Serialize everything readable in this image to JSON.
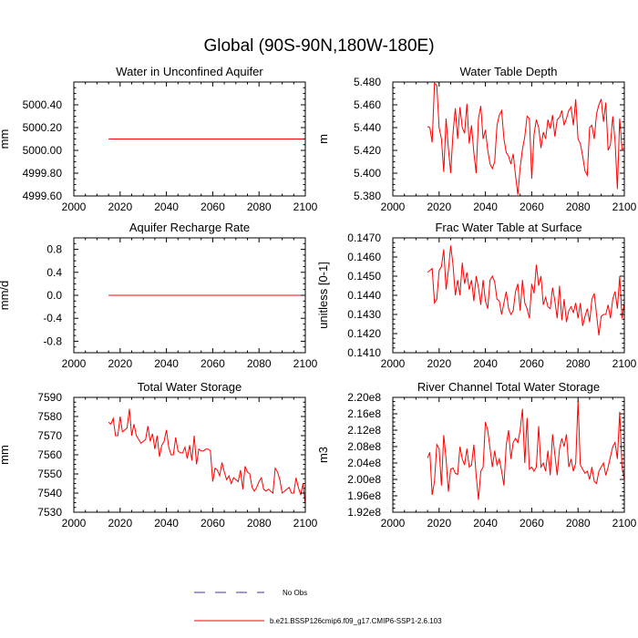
{
  "suptitle": "Global (90S-90N,180W-180E)",
  "colors": {
    "series": "#ff0000",
    "obs": "#4b2fa8"
  },
  "legend": {
    "obs_label": "No Obs",
    "model_label": "b.e21.BSSP126cmip6.f09_g17.CMIP6-SSP1-2.6.103"
  },
  "chart_data": [
    {
      "type": "line",
      "title": "Water in Unconfined Aquifer",
      "ylabel": "mm",
      "xlim": [
        2000,
        2100
      ],
      "ylim": [
        4999.6,
        5000.6
      ],
      "xticks": [
        2000,
        2020,
        2040,
        2060,
        2080,
        2100
      ],
      "xtick_labels": [
        "2000",
        "2020",
        "2040",
        "2060",
        "2080",
        "2100"
      ],
      "yticks": [
        4999.6,
        4999.8,
        5000.0,
        5000.2,
        5000.4
      ],
      "ytick_labels": [
        "4999.60",
        "4999.80",
        "5000.00",
        "5000.20",
        "5000.40"
      ],
      "x_start": 2015,
      "values": [
        5000.1,
        5000.1,
        5000.1,
        5000.1,
        5000.1,
        5000.1,
        5000.1,
        5000.1,
        5000.1,
        5000.1,
        5000.1,
        5000.1,
        5000.1,
        5000.1,
        5000.1,
        5000.1,
        5000.1,
        5000.1,
        5000.1,
        5000.1,
        5000.1,
        5000.1,
        5000.1,
        5000.1,
        5000.1,
        5000.1,
        5000.1,
        5000.1,
        5000.1,
        5000.1,
        5000.1,
        5000.1,
        5000.1,
        5000.1,
        5000.1,
        5000.1,
        5000.1,
        5000.1,
        5000.1,
        5000.1,
        5000.1,
        5000.1,
        5000.1,
        5000.1,
        5000.1,
        5000.1,
        5000.1,
        5000.1,
        5000.1,
        5000.1,
        5000.1,
        5000.1,
        5000.1,
        5000.1,
        5000.1,
        5000.1,
        5000.1,
        5000.1,
        5000.1,
        5000.1,
        5000.1,
        5000.1,
        5000.1,
        5000.1,
        5000.1,
        5000.1,
        5000.1,
        5000.1,
        5000.1,
        5000.1,
        5000.1,
        5000.1,
        5000.1,
        5000.1,
        5000.1,
        5000.1,
        5000.1,
        5000.1,
        5000.1,
        5000.1,
        5000.1,
        5000.1,
        5000.1,
        5000.1,
        5000.1,
        5000.1
      ]
    },
    {
      "type": "line",
      "title": "Water Table Depth",
      "ylabel": "m",
      "xlim": [
        2000,
        2100
      ],
      "ylim": [
        5.38,
        5.48
      ],
      "xticks": [
        2000,
        2020,
        2040,
        2060,
        2080,
        2100
      ],
      "xtick_labels": [
        "2000",
        "2020",
        "2040",
        "2060",
        "2080",
        "2100"
      ],
      "yticks": [
        5.38,
        5.4,
        5.42,
        5.44,
        5.46,
        5.48
      ],
      "ytick_labels": [
        "5.380",
        "5.400",
        "5.420",
        "5.440",
        "5.460",
        "5.480"
      ],
      "x_start": 2015,
      "values": [
        5.441,
        5.44,
        5.427,
        5.479,
        5.477,
        5.44,
        5.43,
        5.401,
        5.448,
        5.422,
        5.4,
        5.435,
        5.457,
        5.43,
        5.458,
        5.44,
        5.435,
        5.461,
        5.426,
        5.442,
        5.418,
        5.4,
        5.448,
        5.459,
        5.43,
        5.438,
        5.42,
        5.408,
        5.404,
        5.41,
        5.442,
        5.451,
        5.455,
        5.43,
        5.418,
        5.415,
        5.408,
        5.417,
        5.398,
        5.381,
        5.405,
        5.421,
        5.432,
        5.45,
        5.448,
        5.395,
        5.434,
        5.447,
        5.44,
        5.422,
        5.436,
        5.43,
        5.447,
        5.439,
        5.451,
        5.432,
        5.447,
        5.449,
        5.455,
        5.442,
        5.448,
        5.455,
        5.458,
        5.442,
        5.465,
        5.43,
        5.426,
        5.415,
        5.402,
        5.398,
        5.44,
        5.442,
        5.43,
        5.452,
        5.46,
        5.465,
        5.445,
        5.462,
        5.42,
        5.425,
        5.45,
        5.428,
        5.386,
        5.448,
        5.421,
        5.422
      ]
    },
    {
      "type": "line",
      "title": "Aquifer Recharge Rate",
      "ylabel": "mm/d",
      "xlim": [
        2000,
        2100
      ],
      "ylim": [
        -1.0,
        1.0
      ],
      "xticks": [
        2000,
        2020,
        2040,
        2060,
        2080,
        2100
      ],
      "xtick_labels": [
        "2000",
        "2020",
        "2040",
        "2060",
        "2080",
        "2100"
      ],
      "yticks": [
        -0.8,
        -0.4,
        0.0,
        0.4,
        0.8
      ],
      "ytick_labels": [
        "-0.8",
        "-0.4",
        "0.0",
        "0.4",
        "0.8"
      ],
      "x_start": 2015,
      "values": [
        0.0,
        0.0,
        0.0,
        0.0,
        0.0,
        0.0,
        0.0,
        0.0,
        0.0,
        0.0,
        0.0,
        0.0,
        0.0,
        0.0,
        0.0,
        0.0,
        0.0,
        0.0,
        0.0,
        0.0,
        0.0,
        0.0,
        0.0,
        0.0,
        0.0,
        0.0,
        0.0,
        0.0,
        0.0,
        0.0,
        0.0,
        0.0,
        0.0,
        0.0,
        0.0,
        0.0,
        0.0,
        0.0,
        0.0,
        0.0,
        0.0,
        0.0,
        0.0,
        0.0,
        0.0,
        0.0,
        0.0,
        0.0,
        0.0,
        0.0,
        0.0,
        0.0,
        0.0,
        0.0,
        0.0,
        0.0,
        0.0,
        0.0,
        0.0,
        0.0,
        0.0,
        0.0,
        0.0,
        0.0,
        0.0,
        0.0,
        0.0,
        0.0,
        0.0,
        0.0,
        0.0,
        0.0,
        0.0,
        0.0,
        0.0,
        0.0,
        0.0,
        0.0,
        0.0,
        0.0,
        0.0,
        0.0,
        0.0,
        0.0,
        0.0,
        0.0
      ]
    },
    {
      "type": "line",
      "title": "Frac Water Table at Surface",
      "ylabel": "unitless [0-1]",
      "xlim": [
        2000,
        2100
      ],
      "ylim": [
        0.141,
        0.147
      ],
      "xticks": [
        2000,
        2020,
        2040,
        2060,
        2080,
        2100
      ],
      "xtick_labels": [
        "2000",
        "2020",
        "2040",
        "2060",
        "2080",
        "2100"
      ],
      "yticks": [
        0.141,
        0.142,
        0.143,
        0.144,
        0.145,
        0.146,
        0.147
      ],
      "ytick_labels": [
        "0.1410",
        "0.1420",
        "0.1430",
        "0.1440",
        "0.1450",
        "0.1460",
        "0.1470"
      ],
      "x_start": 2015,
      "values": [
        0.1452,
        0.1453,
        0.1454,
        0.1436,
        0.1438,
        0.1453,
        0.1455,
        0.1464,
        0.1443,
        0.1453,
        0.1466,
        0.1456,
        0.144,
        0.1448,
        0.144,
        0.1457,
        0.1446,
        0.1452,
        0.1443,
        0.1448,
        0.1437,
        0.145,
        0.1444,
        0.1435,
        0.1448,
        0.1437,
        0.1433,
        0.1448,
        0.145,
        0.1447,
        0.1438,
        0.1437,
        0.143,
        0.1436,
        0.1442,
        0.1433,
        0.143,
        0.1432,
        0.1442,
        0.1446,
        0.1432,
        0.1448,
        0.1436,
        0.1433,
        0.1428,
        0.1446,
        0.1441,
        0.1456,
        0.1445,
        0.145,
        0.1435,
        0.1439,
        0.1434,
        0.1433,
        0.1444,
        0.1437,
        0.1428,
        0.1445,
        0.1427,
        0.1438,
        0.1426,
        0.1432,
        0.1434,
        0.1431,
        0.1436,
        0.1428,
        0.1436,
        0.1424,
        0.1429,
        0.1433,
        0.1426,
        0.1438,
        0.1441,
        0.143,
        0.1419,
        0.1429,
        0.143,
        0.143,
        0.1435,
        0.1428,
        0.1438,
        0.1442,
        0.1433,
        0.145,
        0.1428,
        0.1436
      ]
    },
    {
      "type": "line",
      "title": "Total Water Storage",
      "ylabel": "mm",
      "xlim": [
        2000,
        2100
      ],
      "ylim": [
        7530,
        7590
      ],
      "xticks": [
        2000,
        2020,
        2040,
        2060,
        2080,
        2100
      ],
      "xtick_labels": [
        "2000",
        "2020",
        "2040",
        "2060",
        "2080",
        "2100"
      ],
      "yticks": [
        7530,
        7540,
        7550,
        7560,
        7570,
        7580,
        7590
      ],
      "ytick_labels": [
        "7530",
        "7540",
        "7550",
        "7560",
        "7570",
        "7580",
        "7590"
      ],
      "x_start": 2015,
      "values": [
        7577,
        7576,
        7579,
        7570,
        7570,
        7580,
        7572,
        7573,
        7574,
        7584,
        7570,
        7576,
        7570,
        7568,
        7566,
        7567,
        7568,
        7575,
        7567,
        7571,
        7563,
        7570,
        7559,
        7565,
        7567,
        7573,
        7564,
        7560,
        7560,
        7569,
        7562,
        7561,
        7561,
        7564,
        7558,
        7565,
        7557,
        7570,
        7555,
        7563,
        7562,
        7562,
        7563,
        7563,
        7562,
        7546,
        7553,
        7552,
        7549,
        7556,
        7551,
        7547,
        7549,
        7545,
        7548,
        7547,
        7546,
        7552,
        7542,
        7554,
        7551,
        7550,
        7543,
        7541,
        7543,
        7546,
        7548,
        7542,
        7541,
        7542,
        7541,
        7540,
        7553,
        7551,
        7547,
        7540,
        7541,
        7542,
        7543,
        7540,
        7540,
        7548,
        7543,
        7539,
        7545,
        7534
      ]
    },
    {
      "type": "line",
      "title": "River Channel Total Water Storage",
      "ylabel": "m3",
      "xlim": [
        2000,
        2100
      ],
      "ylim": [
        192000000.0,
        220000000.0
      ],
      "xticks": [
        2000,
        2020,
        2040,
        2060,
        2080,
        2100
      ],
      "xtick_labels": [
        "2000",
        "2020",
        "2040",
        "2060",
        "2080",
        "2100"
      ],
      "yticks": [
        192000000.0,
        196000000.0,
        200000000.0,
        204000000.0,
        208000000.0,
        212000000.0,
        216000000.0,
        220000000.0
      ],
      "ytick_labels": [
        "1.92e8",
        "1.96e8",
        "2.00e8",
        "2.04e8",
        "2.08e8",
        "2.12e8",
        "2.16e8",
        "2.20e8"
      ],
      "x_start": 2015,
      "values": [
        205200000.0,
        206600000.0,
        196200000.0,
        199500000.0,
        208500000.0,
        207500000.0,
        198500000.0,
        210800000.0,
        205000000.0,
        197000000.0,
        202500000.0,
        202800000.0,
        201500000.0,
        201200000.0,
        208000000.0,
        205000000.0,
        203500000.0,
        207500000.0,
        203000000.0,
        203500000.0,
        208500000.0,
        201000000.0,
        195000000.0,
        202000000.0,
        203000000.0,
        214000000.0,
        212000000.0,
        207500000.0,
        203000000.0,
        207000000.0,
        203500000.0,
        205000000.0,
        202000000.0,
        198500000.0,
        208500000.0,
        212000000.0,
        205000000.0,
        209000000.0,
        210000000.0,
        209000000.0,
        212000000.0,
        217200000.0,
        204000000.0,
        215000000.0,
        202500000.0,
        203000000.0,
        202000000.0,
        203000000.0,
        213000000.0,
        203000000.0,
        204000000.0,
        202000000.0,
        207000000.0,
        201000000.0,
        211000000.0,
        206000000.0,
        201000000.0,
        207500000.0,
        210000000.0,
        208000000.0,
        211000000.0,
        203000000.0,
        205000000.0,
        202000000.0,
        204000000.0,
        219200000.0,
        203500000.0,
        202500000.0,
        201500000.0,
        202000000.0,
        200000000.0,
        203000000.0,
        199500000.0,
        199000000.0,
        202000000.0,
        203000000.0,
        204000000.0,
        201000000.0,
        203000000.0,
        205500000.0,
        208000000.0,
        209000000.0,
        205000000.0,
        216500000.0,
        203000000.0,
        200000000.0
      ]
    }
  ]
}
